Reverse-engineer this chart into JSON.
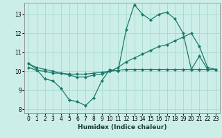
{
  "xlabel": "Humidex (Indice chaleur)",
  "bg_color": "#cceee8",
  "grid_color": "#aaddcc",
  "line_color": "#1a7a6a",
  "xlim": [
    -0.5,
    23.5
  ],
  "ylim": [
    7.8,
    13.6
  ],
  "xticks": [
    0,
    1,
    2,
    3,
    4,
    5,
    6,
    7,
    8,
    9,
    10,
    11,
    12,
    13,
    14,
    15,
    16,
    17,
    18,
    19,
    20,
    21,
    22,
    23
  ],
  "yticks": [
    8,
    9,
    10,
    11,
    12,
    13
  ],
  "line1_x": [
    0,
    1,
    2,
    3,
    4,
    5,
    6,
    7,
    8,
    9,
    10,
    11,
    12,
    13,
    14,
    15,
    16,
    17,
    18,
    19,
    20,
    21,
    22,
    23
  ],
  "line1_y": [
    10.4,
    10.1,
    9.6,
    9.5,
    9.1,
    8.5,
    8.4,
    8.2,
    8.6,
    9.5,
    10.1,
    10.0,
    12.2,
    13.5,
    13.0,
    12.7,
    13.0,
    13.1,
    12.75,
    12.0,
    10.1,
    10.8,
    10.1,
    10.1
  ],
  "line2_x": [
    0,
    1,
    2,
    3,
    4,
    5,
    6,
    7,
    8,
    9,
    10,
    11,
    12,
    13,
    14,
    15,
    16,
    17,
    18,
    19,
    20,
    21,
    22,
    23
  ],
  "line2_y": [
    10.2,
    10.05,
    10.0,
    9.9,
    9.9,
    9.85,
    9.85,
    9.85,
    9.9,
    9.95,
    10.0,
    10.05,
    10.1,
    10.1,
    10.1,
    10.1,
    10.1,
    10.1,
    10.1,
    10.1,
    10.1,
    10.1,
    10.1,
    10.1
  ],
  "line3_x": [
    0,
    1,
    2,
    3,
    4,
    5,
    6,
    7,
    8,
    9,
    10,
    11,
    12,
    13,
    14,
    15,
    16,
    17,
    18,
    19,
    20,
    21,
    22,
    23
  ],
  "line3_y": [
    10.4,
    10.2,
    10.1,
    10.0,
    9.9,
    9.8,
    9.7,
    9.7,
    9.8,
    9.85,
    10.0,
    10.2,
    10.5,
    10.7,
    10.9,
    11.1,
    11.3,
    11.4,
    11.6,
    11.8,
    12.0,
    11.3,
    10.2,
    10.1
  ]
}
